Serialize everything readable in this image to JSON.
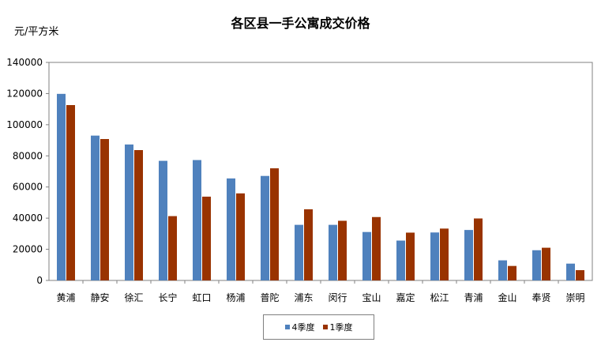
{
  "chart_data": {
    "type": "bar",
    "title": "各区县一手公寓成交价格",
    "ylabel": "元/平方米",
    "xlabel": "",
    "ylim": [
      0,
      140000
    ],
    "yticks": [
      0,
      20000,
      40000,
      60000,
      80000,
      100000,
      120000,
      140000
    ],
    "categories": [
      "黄浦",
      "静安",
      "徐汇",
      "长宁",
      "虹口",
      "杨浦",
      "普陀",
      "浦东",
      "闵行",
      "宝山",
      "嘉定",
      "松江",
      "青浦",
      "金山",
      "奉贤",
      "崇明"
    ],
    "series": [
      {
        "name": "4季度",
        "color": "#4f81bd",
        "values": [
          119800,
          93000,
          87300,
          76800,
          77300,
          65500,
          67100,
          35700,
          35700,
          31100,
          25600,
          30800,
          32400,
          12900,
          19400,
          10800
        ]
      },
      {
        "name": "1季度",
        "color": "#993300",
        "values": [
          112600,
          90800,
          83700,
          41300,
          53800,
          55900,
          72000,
          45700,
          38300,
          40700,
          30700,
          33300,
          39800,
          9300,
          21000,
          6600
        ]
      }
    ],
    "grid": false,
    "legend": "bottom"
  }
}
